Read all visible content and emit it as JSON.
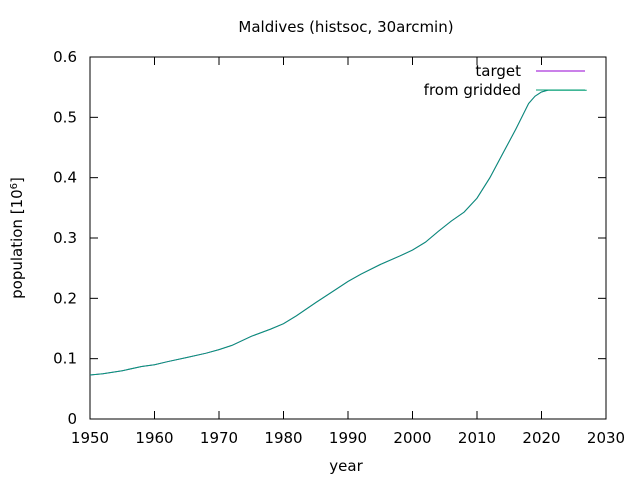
{
  "chart_data": {
    "type": "line",
    "title": "Maldives (histsoc, 30arcmin)",
    "xlabel": "year",
    "ylabel_main": "population [10",
    "ylabel_sup": "6",
    "ylabel_close": "]",
    "xlim": [
      1950,
      2030
    ],
    "ylim": [
      0,
      0.6
    ],
    "xticks": [
      "1950",
      "1960",
      "1970",
      "1980",
      "1990",
      "2000",
      "2010",
      "2020",
      "2030"
    ],
    "yticks": [
      "0",
      "0.1",
      "0.2",
      "0.3",
      "0.4",
      "0.5",
      "0.6"
    ],
    "grid": false,
    "legend_position": "top-right",
    "series": [
      {
        "name": "target",
        "color": "#9400d3",
        "x": [
          1950,
          1952,
          1955,
          1958,
          1960,
          1962,
          1965,
          1968,
          1970,
          1972,
          1975,
          1978,
          1980,
          1982,
          1985,
          1988,
          1990,
          1992,
          1995,
          1998,
          2000,
          2002,
          2004,
          2006,
          2008,
          2010,
          2012,
          2014,
          2016,
          2018,
          2019,
          2020,
          2021
        ],
        "y": [
          0.073,
          0.075,
          0.08,
          0.087,
          0.09,
          0.095,
          0.102,
          0.109,
          0.115,
          0.122,
          0.137,
          0.149,
          0.158,
          0.171,
          0.193,
          0.214,
          0.228,
          0.24,
          0.256,
          0.27,
          0.28,
          0.293,
          0.311,
          0.328,
          0.343,
          0.366,
          0.4,
          0.44,
          0.48,
          0.523,
          0.535,
          0.542,
          0.545
        ]
      },
      {
        "name": "from gridded",
        "color": "#009e73",
        "x": [
          1950,
          1952,
          1955,
          1958,
          1960,
          1962,
          1965,
          1968,
          1970,
          1972,
          1975,
          1978,
          1980,
          1982,
          1985,
          1988,
          1990,
          1992,
          1995,
          1998,
          2000,
          2002,
          2004,
          2006,
          2008,
          2010,
          2012,
          2014,
          2016,
          2018,
          2019,
          2020,
          2021,
          2027
        ],
        "y": [
          0.073,
          0.075,
          0.08,
          0.087,
          0.09,
          0.095,
          0.102,
          0.109,
          0.115,
          0.122,
          0.137,
          0.149,
          0.158,
          0.171,
          0.193,
          0.214,
          0.228,
          0.24,
          0.256,
          0.27,
          0.28,
          0.293,
          0.311,
          0.328,
          0.343,
          0.366,
          0.4,
          0.44,
          0.48,
          0.523,
          0.535,
          0.542,
          0.545,
          0.545
        ]
      }
    ]
  }
}
